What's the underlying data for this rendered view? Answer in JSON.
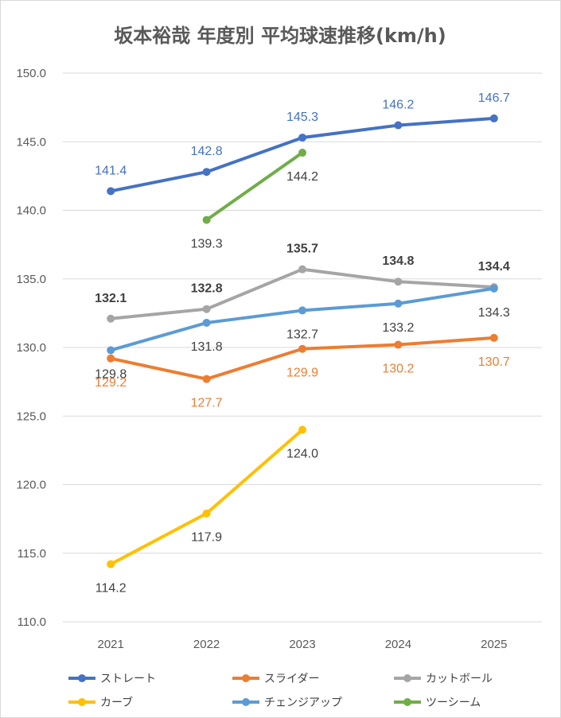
{
  "chart_data": {
    "type": "line",
    "title": "坂本裕哉 年度別 平均球速推移(km/h)",
    "categories": [
      "2021",
      "2022",
      "2023",
      "2024",
      "2025"
    ],
    "ylim": [
      110,
      150
    ],
    "yticks": [
      "110.0",
      "115.0",
      "120.0",
      "125.0",
      "130.0",
      "135.0",
      "140.0",
      "145.0",
      "150.0"
    ],
    "grid": true,
    "legend_position": "bottom",
    "series": [
      {
        "name": "ストレート",
        "color": "#4472C4",
        "label_color": "#4472C4",
        "label_bold": false,
        "label_pos": "above",
        "values": [
          141.4,
          142.8,
          145.3,
          146.2,
          146.7
        ],
        "labels": [
          "141.4",
          "142.8",
          "145.3",
          "146.2",
          "146.7"
        ]
      },
      {
        "name": "スライダー",
        "color": "#ED7D31",
        "label_color": "#ED7D31",
        "label_bold": false,
        "label_pos": "below",
        "values": [
          129.2,
          127.7,
          129.9,
          130.2,
          130.7
        ],
        "labels": [
          "129.2",
          "127.7",
          "129.9",
          "130.2",
          "130.7"
        ]
      },
      {
        "name": "カットボール",
        "color": "#A5A5A5",
        "label_color": "#404040",
        "label_bold": true,
        "label_pos": "above",
        "values": [
          132.1,
          132.8,
          135.7,
          134.8,
          134.4
        ],
        "labels": [
          "132.1",
          "132.8",
          "135.7",
          "134.8",
          "134.4"
        ]
      },
      {
        "name": "カーブ",
        "color": "#FFC000",
        "label_color": "#404040",
        "label_bold": false,
        "label_pos": "below",
        "values": [
          114.2,
          117.9,
          124.0,
          null,
          null
        ],
        "labels": [
          "114.2",
          "117.9",
          "124.0",
          null,
          null
        ]
      },
      {
        "name": "チェンジアップ",
        "color": "#5B9BD5",
        "label_color": "#404040",
        "label_bold": false,
        "label_pos": "below",
        "values": [
          129.8,
          131.8,
          132.7,
          133.2,
          134.3
        ],
        "labels": [
          "129.8",
          "131.8",
          "132.7",
          "133.2",
          "134.3"
        ]
      },
      {
        "name": "ツーシーム",
        "color": "#70AD47",
        "label_color": "#404040",
        "label_bold": false,
        "label_pos": "below",
        "values": [
          null,
          139.3,
          144.2,
          null,
          null
        ],
        "labels": [
          null,
          "139.3",
          "144.2",
          null,
          null
        ]
      }
    ]
  }
}
